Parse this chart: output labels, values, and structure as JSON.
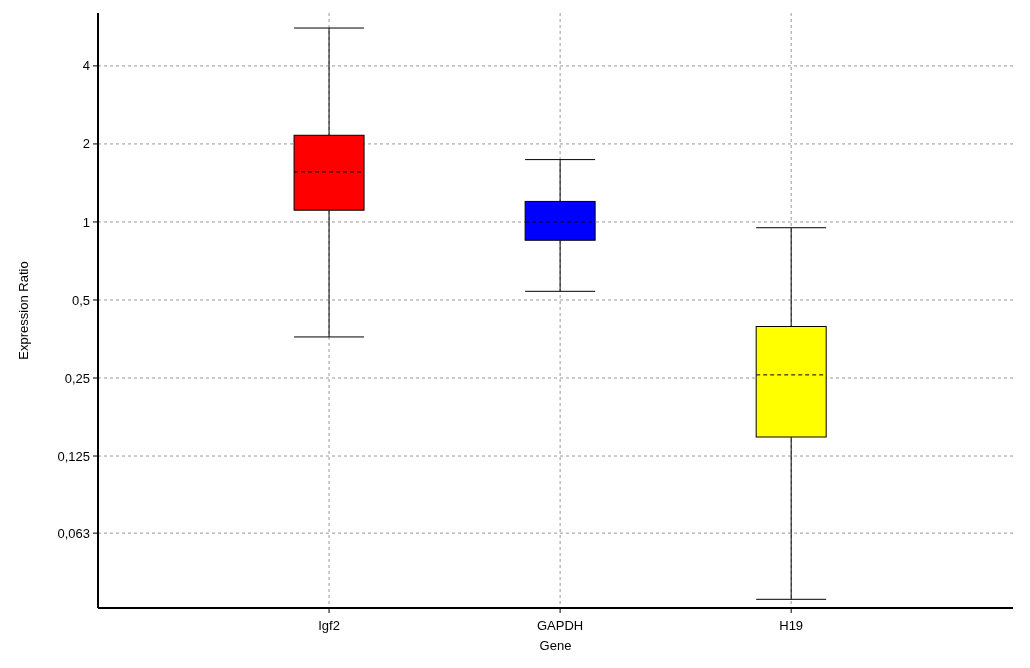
{
  "chart_data": {
    "type": "box",
    "xlabel": "Gene",
    "ylabel": "Expression Ratio",
    "categories": [
      "Igf2",
      "GAPDH",
      "H19"
    ],
    "colors": [
      "#ff0000",
      "#0000ff",
      "#ffff00"
    ],
    "boxes": [
      {
        "low": 0.36,
        "q1": 1.11,
        "median": 1.56,
        "q3": 2.16,
        "high": 5.6
      },
      {
        "low": 0.54,
        "q1": 0.85,
        "median": 1.0,
        "q3": 1.2,
        "high": 1.74
      },
      {
        "low": 0.035,
        "q1": 0.148,
        "median": 0.257,
        "q3": 0.395,
        "high": 0.95
      }
    ],
    "ylim": [
      0.0324,
      6.4
    ],
    "yticks": [
      {
        "value": 0.063,
        "label": "0,063"
      },
      {
        "value": 0.125,
        "label": "0,125"
      },
      {
        "value": 0.25,
        "label": "0,25"
      },
      {
        "value": 0.5,
        "label": "0,5"
      },
      1,
      2,
      4
    ],
    "log": true,
    "grid": true
  }
}
